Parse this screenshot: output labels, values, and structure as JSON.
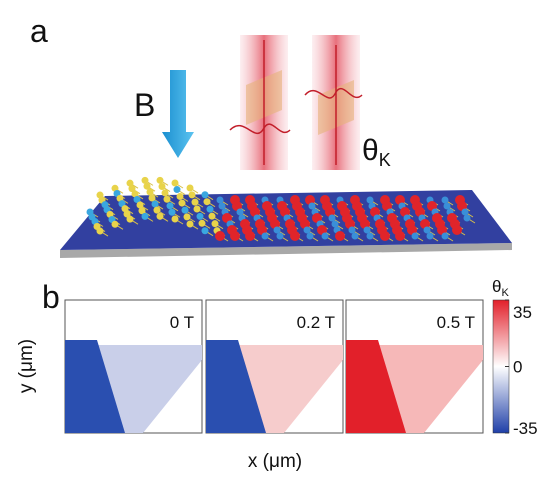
{
  "panel_a": {
    "label": "a",
    "field_label": "B",
    "angle_symbol": "θ",
    "angle_sub": "K"
  },
  "panel_b": {
    "label": "b",
    "maps": [
      {
        "field": "0 T",
        "color": "#2a4fb0",
        "light": "#c9cfe9"
      },
      {
        "field": "0.2 T",
        "color": "#2a4fb0",
        "light": "#f6cccc"
      },
      {
        "field": "0.5 T",
        "color": "#e2202a",
        "light": "#f6b8b8"
      }
    ],
    "colorbar": {
      "symbol": "θ",
      "sub": "K",
      "ticks": [
        35,
        0,
        -35
      ]
    },
    "x_label": "x (μm)",
    "y_label": "y (μm)"
  }
}
